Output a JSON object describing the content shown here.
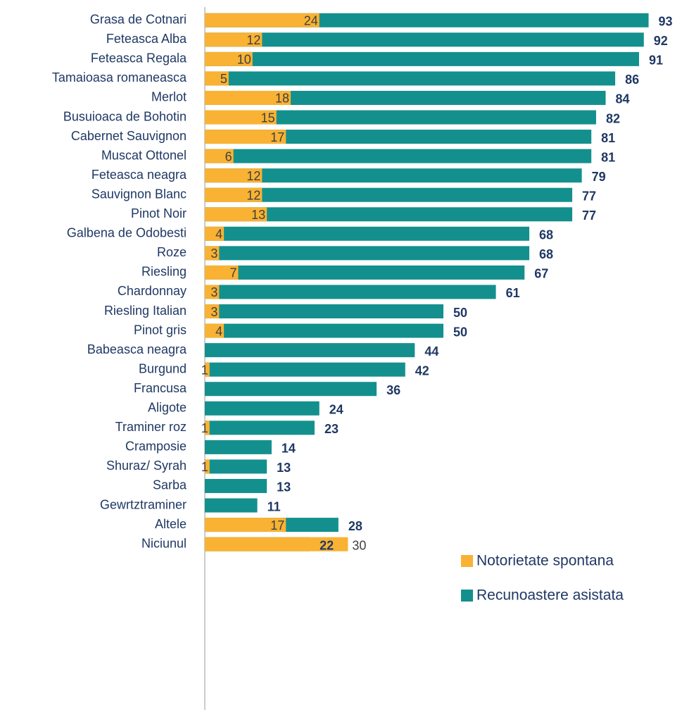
{
  "chart_data": {
    "type": "bar",
    "orientation": "horizontal",
    "overlap": true,
    "categories": [
      "Grasa de Cotnari",
      "Feteasca Alba",
      "Feteasca Regala",
      "Tamaioasa romaneasca",
      "Merlot",
      "Busuioaca de Bohotin",
      "Cabernet Sauvignon",
      "Muscat Ottonel",
      "Feteasca neagra",
      "Sauvignon Blanc",
      "Pinot Noir",
      "Galbena de Odobesti",
      "Roze",
      "Riesling",
      "Chardonnay",
      "Riesling Italian",
      "Pinot gris",
      "Babeasca neagra",
      "Burgund",
      "Francusa",
      "Aligote",
      "Traminer roz",
      "Cramposie",
      "Shuraz/ Syrah",
      "Sarba",
      "Gewrtztraminer",
      "Altele",
      "Niciunul"
    ],
    "series": [
      {
        "name": "Recunoastere asistata",
        "color": "#13908d",
        "values": [
          93,
          92,
          91,
          86,
          84,
          82,
          81,
          81,
          79,
          77,
          77,
          68,
          68,
          67,
          61,
          50,
          50,
          44,
          42,
          36,
          24,
          23,
          14,
          13,
          13,
          11,
          28,
          22
        ]
      },
      {
        "name": "Notorietate spontana",
        "color": "#f9b233",
        "values": [
          24,
          12,
          10,
          5,
          18,
          15,
          17,
          6,
          12,
          12,
          13,
          4,
          3,
          7,
          3,
          3,
          4,
          null,
          1,
          null,
          null,
          1,
          null,
          1,
          null,
          null,
          17,
          30
        ]
      }
    ],
    "xlim": [
      0,
      100
    ]
  }
}
